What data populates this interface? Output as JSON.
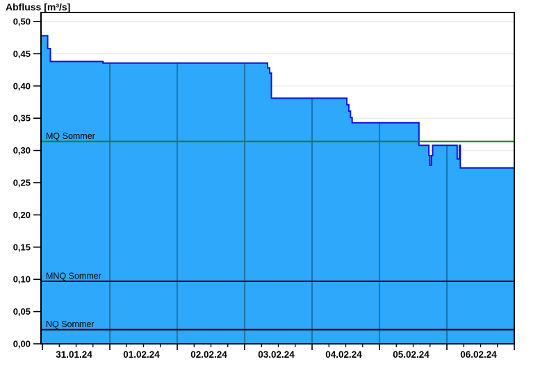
{
  "chart_data": {
    "type": "area",
    "title": "Abfluss [m³/s]",
    "unit": "m³/s",
    "x_axis": {
      "tick_labels": [
        "31.01.24",
        "01.02.24",
        "02.02.24",
        "03.02.24",
        "04.02.24",
        "05.02.24",
        "06.02.24"
      ],
      "days_shown": 7,
      "minor_ticks_per_day": 4,
      "t_min": -0.021,
      "t_max": 7.0
    },
    "y_axis": {
      "ticks": [
        {
          "value": 0.5,
          "label": "0,50"
        },
        {
          "value": 0.45,
          "label": "0,45"
        },
        {
          "value": 0.4,
          "label": "0,40"
        },
        {
          "value": 0.35,
          "label": "0,35"
        },
        {
          "value": 0.3,
          "label": "0,30"
        },
        {
          "value": 0.25,
          "label": "0,25"
        },
        {
          "value": 0.2,
          "label": "0,20"
        },
        {
          "value": 0.15,
          "label": "0,15"
        },
        {
          "value": 0.1,
          "label": "0,10"
        },
        {
          "value": 0.05,
          "label": "0,05"
        },
        {
          "value": 0.0,
          "label": "0,00"
        }
      ],
      "v_top": 0.514,
      "v_bottom": 0.0
    },
    "series": {
      "name": "Abfluss",
      "step_vertices": [
        [
          -0.021,
          0.478
        ],
        [
          0.078,
          0.478
        ],
        [
          0.078,
          0.458
        ],
        [
          0.118,
          0.458
        ],
        [
          0.118,
          0.438
        ],
        [
          0.9,
          0.438
        ],
        [
          0.9,
          0.4355
        ],
        [
          3.34,
          0.4355
        ],
        [
          3.34,
          0.428
        ],
        [
          3.371,
          0.428
        ],
        [
          3.371,
          0.42
        ],
        [
          3.397,
          0.42
        ],
        [
          3.397,
          0.381
        ],
        [
          4.515,
          0.381
        ],
        [
          4.515,
          0.371
        ],
        [
          4.545,
          0.371
        ],
        [
          4.545,
          0.361
        ],
        [
          4.57,
          0.361
        ],
        [
          4.57,
          0.351
        ],
        [
          4.595,
          0.351
        ],
        [
          4.595,
          0.343
        ],
        [
          5.585,
          0.343
        ],
        [
          5.585,
          0.308
        ],
        [
          5.733,
          0.308
        ],
        [
          5.733,
          0.292
        ],
        [
          5.747,
          0.292
        ],
        [
          5.747,
          0.277
        ],
        [
          5.771,
          0.277
        ],
        [
          5.771,
          0.292
        ],
        [
          5.789,
          0.292
        ],
        [
          5.789,
          0.308
        ],
        [
          6.153,
          0.308
        ],
        [
          6.153,
          0.287
        ],
        [
          6.183,
          0.287
        ],
        [
          6.183,
          0.308
        ],
        [
          6.199,
          0.308
        ],
        [
          6.199,
          0.273
        ],
        [
          7.0,
          0.273
        ]
      ]
    },
    "reference_lines": [
      {
        "label": "MQ Sommer",
        "value": 0.314,
        "color": "#0a8a00"
      },
      {
        "label": "MNQ Sommer",
        "value": 0.097,
        "color": "#000000"
      },
      {
        "label": "NQ Sommer",
        "value": 0.022,
        "color": "#000000"
      }
    ],
    "colors": {
      "area_fill": "#2da8fa",
      "area_outline": "#0a14dc",
      "day_gridline": "#1b74ad",
      "horizontal_gridline": "#ececec",
      "axis": "#000000",
      "text": "#000000",
      "background": "#ffffff"
    },
    "legend_position": "none",
    "grid": {
      "horizontal": true,
      "vertical_inside_area_only": true
    }
  }
}
